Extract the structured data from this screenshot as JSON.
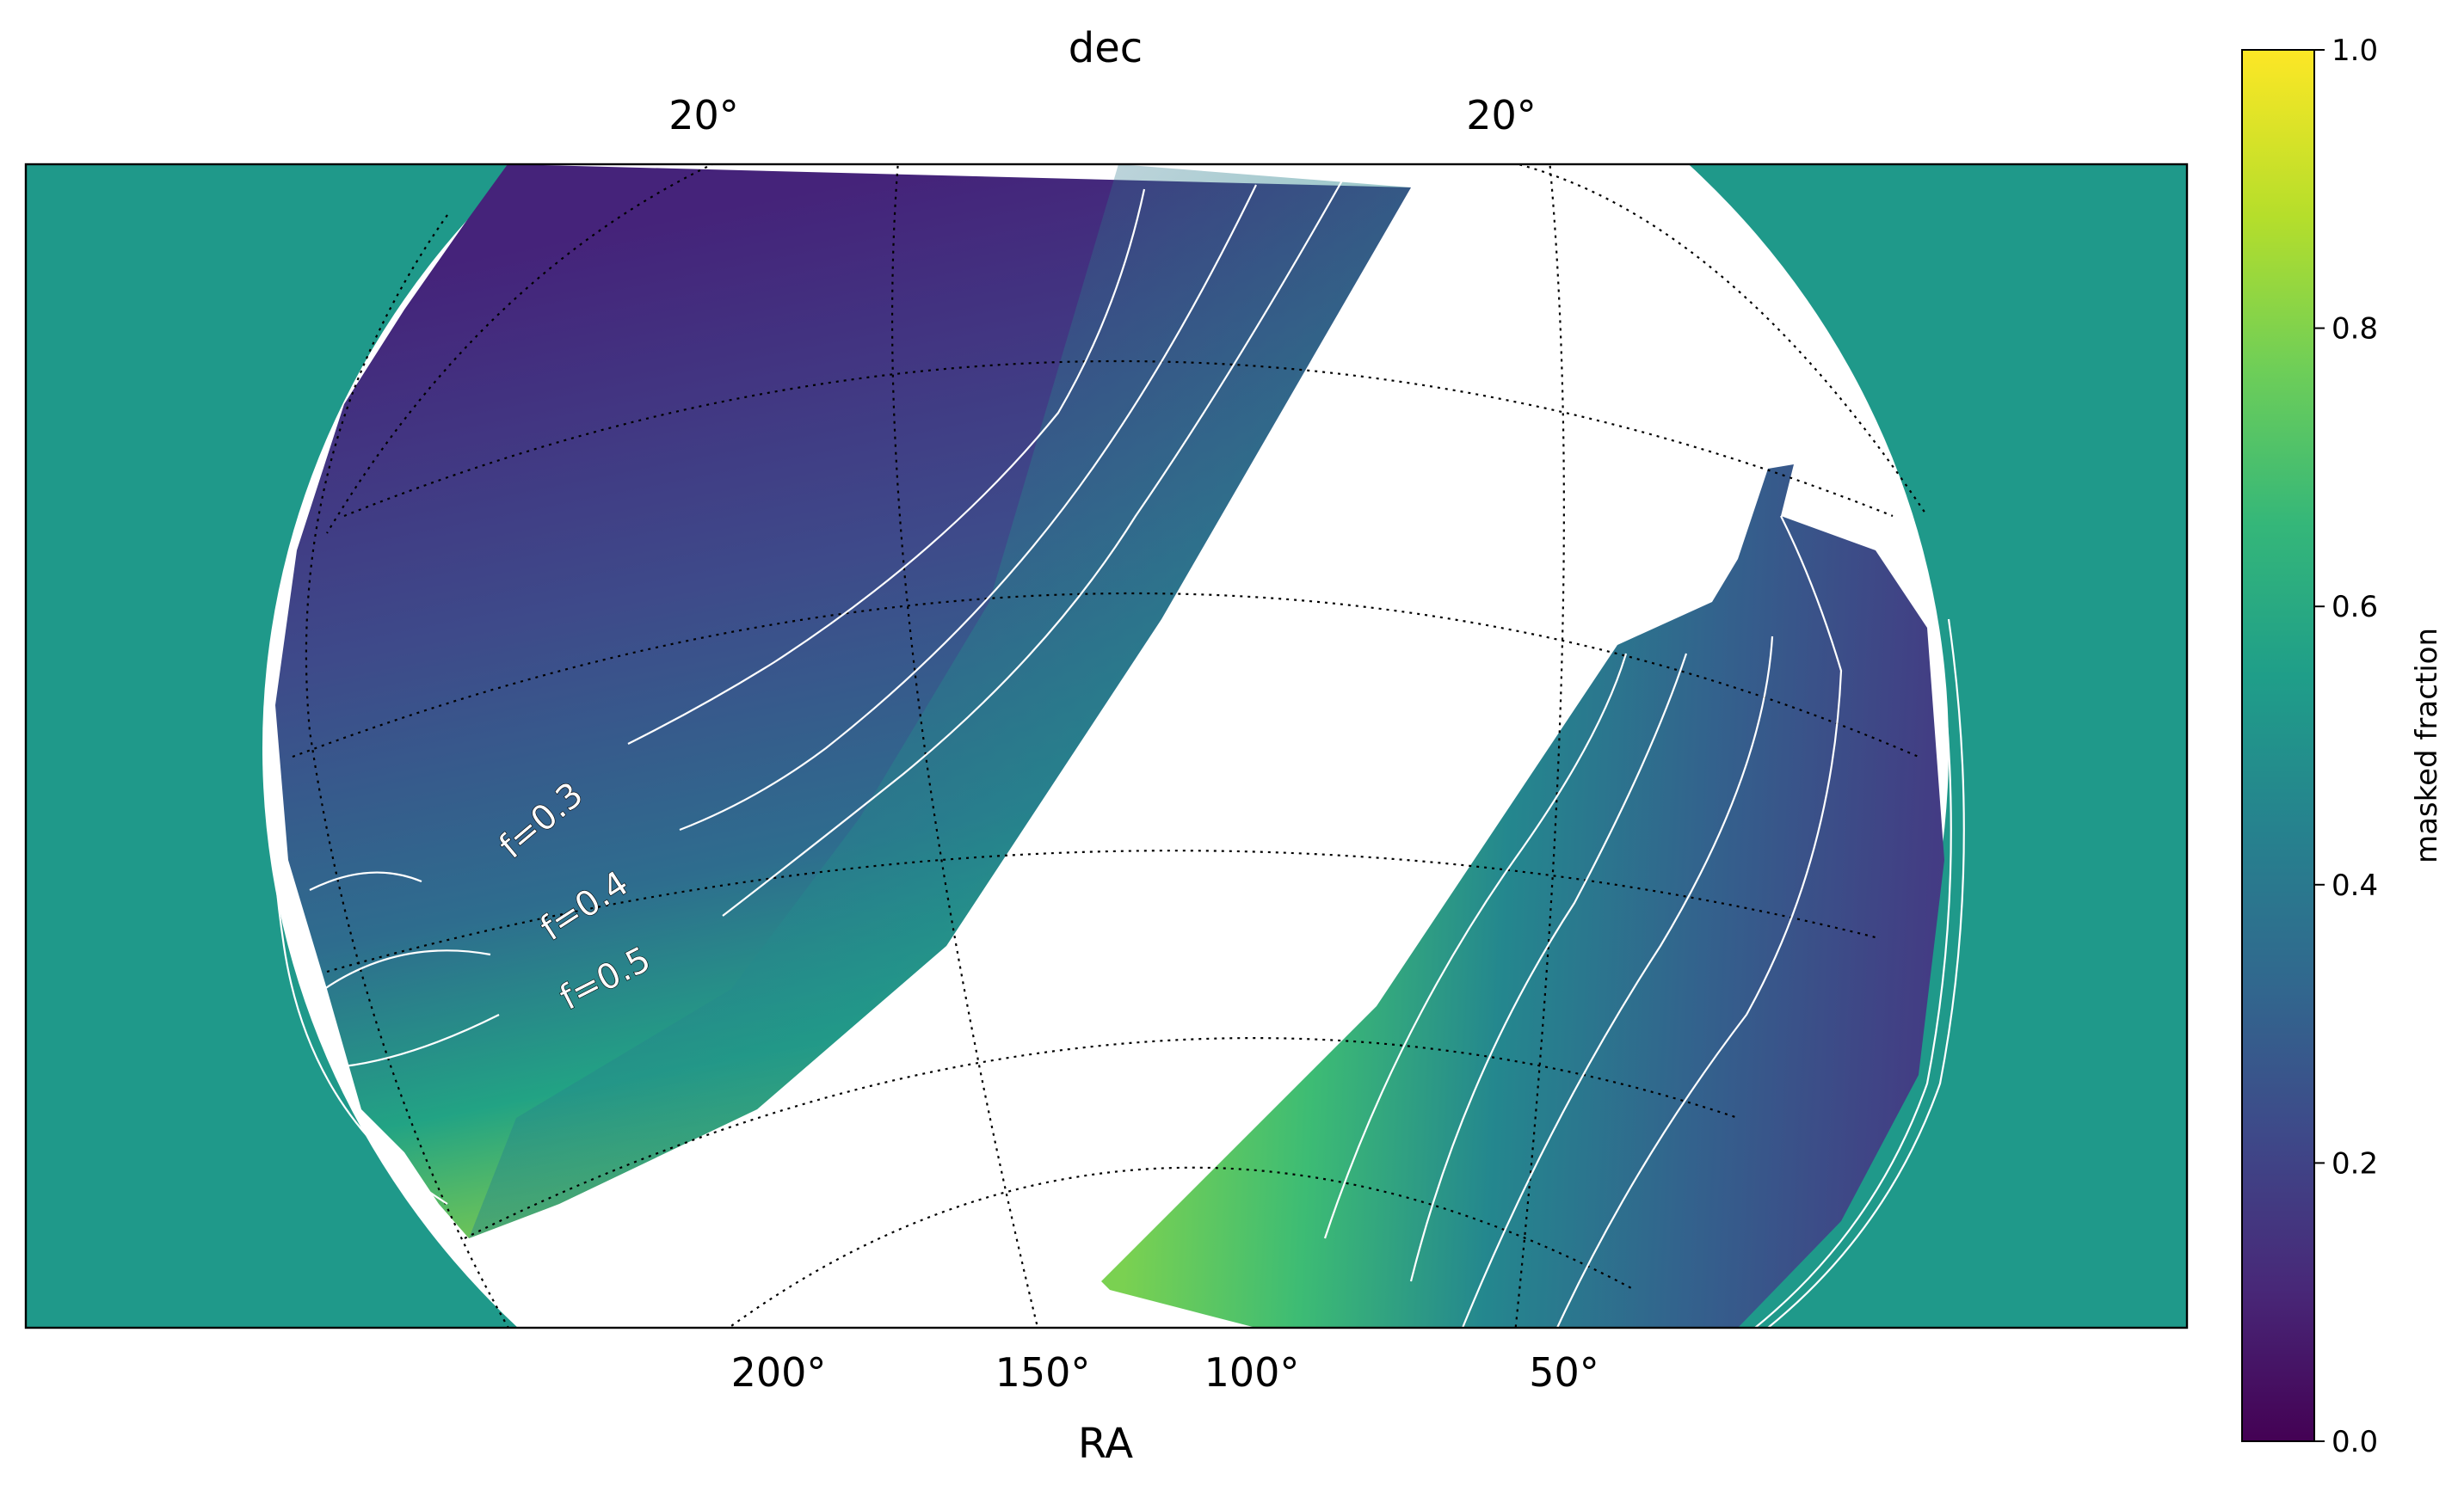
{
  "chart_data": {
    "type": "heatmap",
    "projection": "orthographic sky view",
    "xlabel": "RA",
    "ylabel": "dec",
    "x_tick_labels": [
      "200°",
      "150°",
      "100°",
      "50°"
    ],
    "y_tick_labels": [
      "20°",
      "20°"
    ],
    "colorbar": {
      "label": "masked fraction",
      "colormap": "viridis",
      "range": [
        0.0,
        1.0
      ],
      "tick_labels": [
        "0.0",
        "0.2",
        "0.4",
        "0.6",
        "0.8",
        "1.0"
      ],
      "tick_values": [
        0.0,
        0.2,
        0.4,
        0.6,
        0.8,
        1.0
      ]
    },
    "background_value": 0.5,
    "graticule": "dotted black",
    "contours": [
      {
        "label": "f=0.3",
        "level": 0.3,
        "color": "#ffffff"
      },
      {
        "label": "f=0.4",
        "level": 0.4,
        "color": "#ffffff"
      },
      {
        "label": "f=0.5",
        "level": 0.5,
        "color": "#ffffff"
      }
    ]
  },
  "colors": {
    "background_fill": "#1f998a",
    "viridis": [
      "#440154",
      "#482878",
      "#3e4989",
      "#31688e",
      "#26828e",
      "#1f9e89",
      "#35b779",
      "#6ece58",
      "#b5de2b",
      "#fde725"
    ]
  }
}
